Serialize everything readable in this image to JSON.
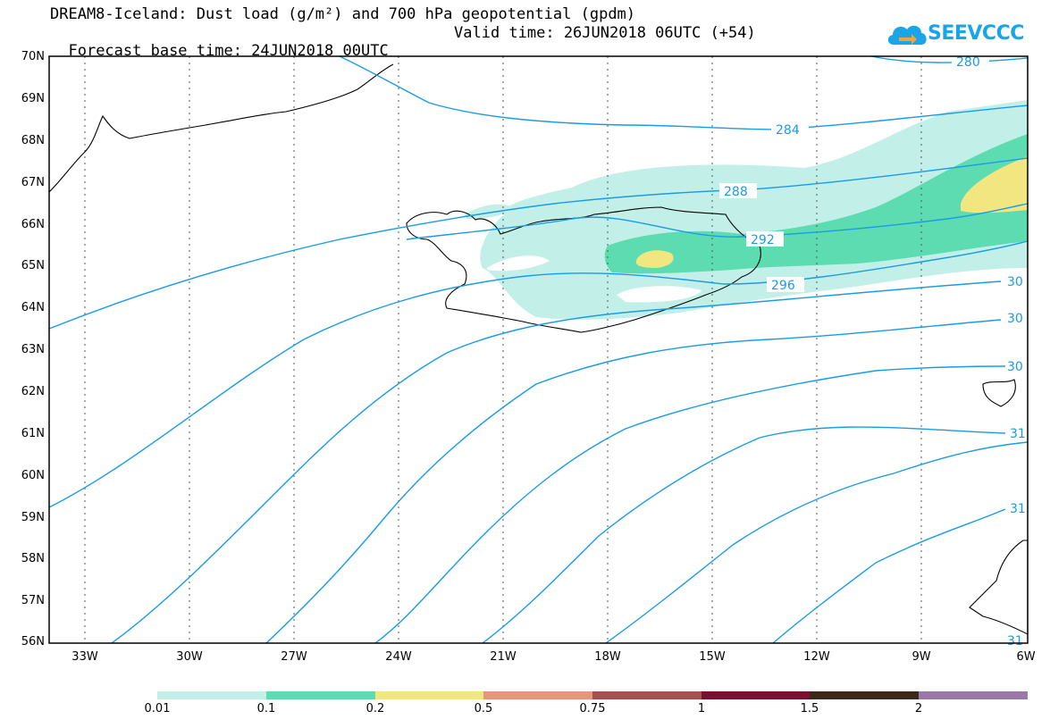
{
  "title": {
    "line1": "DREAM8-Iceland: Dust load (g/m²) and 700 hPa geopotential (gpdm)",
    "line2_base": "Forecast base time: 24JUN2018 00UTC",
    "line2_valid": "Valid time: 26JUN2018 06UTC (+54)"
  },
  "logo": {
    "text": "SEEVCCC",
    "icon": "cloud-logo-icon"
  },
  "axes": {
    "y_labels": [
      "70N",
      "69N",
      "68N",
      "67N",
      "66N",
      "65N",
      "64N",
      "63N",
      "62N",
      "61N",
      "60N",
      "59N",
      "58N",
      "57N",
      "56N"
    ],
    "x_labels": [
      "33W",
      "30W",
      "27W",
      "24W",
      "21W",
      "18W",
      "15W",
      "12W",
      "9W",
      "6W"
    ]
  },
  "contours": {
    "labels": [
      "280",
      "284",
      "288",
      "292",
      "296",
      "30",
      "30",
      "30",
      "31",
      "31",
      "31"
    ]
  },
  "colorbar": {
    "colors": [
      "#c2f0e8",
      "#5cdcb0",
      "#f2e680",
      "#e8967a",
      "#a65050",
      "#7a1030",
      "#3a2818",
      "#9a78a8"
    ],
    "labels": [
      "0.01",
      "0.1",
      "0.2",
      "0.5",
      "0.75",
      "1",
      "1.5",
      "2"
    ]
  },
  "colors": {
    "contour": "#1a9be8",
    "coast": "#000000"
  }
}
